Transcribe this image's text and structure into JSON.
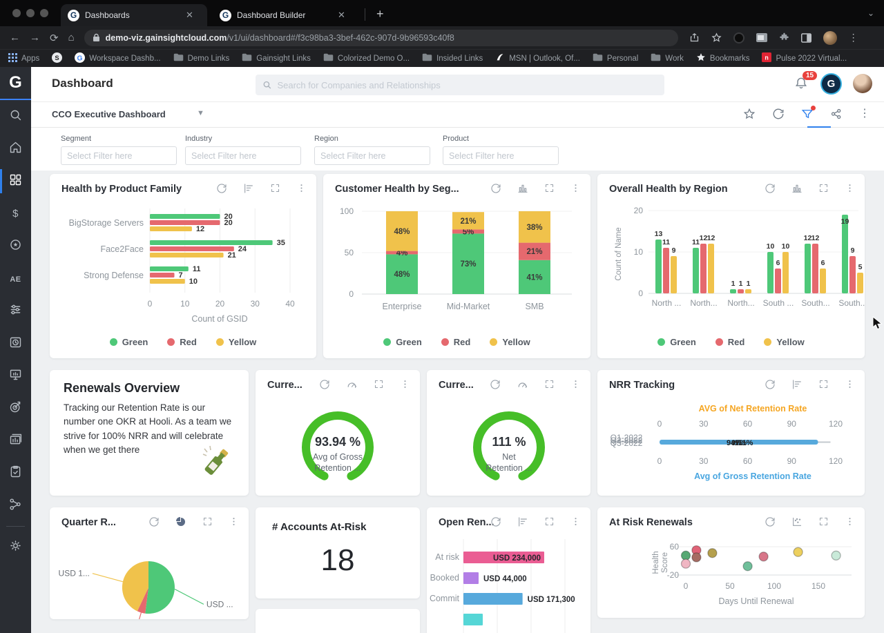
{
  "browser": {
    "tabs": [
      {
        "title": "Dashboards"
      },
      {
        "title": "Dashboard Builder"
      }
    ],
    "url_host": "demo-viz.gainsightcloud.com",
    "url_path": "/v1/ui/dashboard#/f3c98ba3-3bef-462c-907d-9b96593c40f8",
    "bookmarks": [
      {
        "label": "Apps",
        "icon": "apps"
      },
      {
        "label": "",
        "icon": "s-circle"
      },
      {
        "label": "Workspace Dashb...",
        "icon": "google"
      },
      {
        "label": "Demo Links",
        "icon": "folder"
      },
      {
        "label": "Gainsight Links",
        "icon": "folder"
      },
      {
        "label": "Colorized Demo O...",
        "icon": "folder"
      },
      {
        "label": "Insided Links",
        "icon": "folder"
      },
      {
        "label": "MSN | Outlook, Of...",
        "icon": "msn"
      },
      {
        "label": "Personal",
        "icon": "folder"
      },
      {
        "label": "Work",
        "icon": "folder"
      },
      {
        "label": "Bookmarks",
        "icon": "star-b"
      },
      {
        "label": "Pulse 2022 Virtual...",
        "icon": "pulse"
      }
    ]
  },
  "header": {
    "title": "Dashboard",
    "search_placeholder": "Search for Companies and Relationships",
    "notification_count": "15"
  },
  "selector": {
    "label": "CCO Executive Dashboard"
  },
  "filters": [
    {
      "label": "Segment",
      "placeholder": "Select Filter here"
    },
    {
      "label": "Industry",
      "placeholder": "Select Filter here"
    },
    {
      "label": "Region",
      "placeholder": "Select Filter here"
    },
    {
      "label": "Product",
      "placeholder": "Select Filter here"
    }
  ],
  "legend": {
    "labels": [
      "Green",
      "Red",
      "Yellow"
    ]
  },
  "colors": {
    "green": "#4ec878",
    "red": "#e5696e",
    "yellow": "#f0c24b",
    "gauge_green": "#46be28",
    "blue": "#57a9dc",
    "orange": "#f5a623",
    "pink": "#ea5d93",
    "purple": "#b27ee6",
    "cyan": "#55d6d6",
    "accent_blue": "#2f80ed",
    "badge_red": "#e8413d",
    "axis_text": "#8e959c"
  },
  "cards": [
    {
      "id": "hpf",
      "title": "Health by Product Family",
      "icons": [
        "refresh",
        "barsh",
        "expand",
        "kebab"
      ]
    },
    {
      "id": "chs",
      "title": "Customer Health by Seg...",
      "icons": [
        "refresh",
        "columns",
        "expand",
        "kebab"
      ]
    },
    {
      "id": "ohr",
      "title": "Overall Health by Region",
      "icons": [
        "refresh",
        "columns",
        "expand",
        "kebab"
      ]
    },
    {
      "id": "renew",
      "title": "Renewals Overview",
      "body": "Tracking our Retention Rate is our number one OKR at Hooli. As a team we strive for 100% NRR and will celebrate when we get there"
    },
    {
      "id": "g1",
      "title": "Curre...",
      "icons": [
        "refresh",
        "gauge",
        "expand",
        "kebab"
      ]
    },
    {
      "id": "g2",
      "title": "Curre...",
      "icons": [
        "refresh",
        "gauge",
        "expand",
        "kebab"
      ]
    },
    {
      "id": "nrr",
      "title": "NRR Tracking",
      "icons": [
        "refresh",
        "barsh",
        "expand",
        "kebab"
      ]
    },
    {
      "id": "pie",
      "title": "Quarter R...",
      "icons": [
        "refresh",
        "pieic",
        "expand",
        "kebab"
      ]
    },
    {
      "id": "num",
      "title": "# Accounts At-Risk"
    },
    {
      "id": "blank",
      "title": ""
    },
    {
      "id": "open",
      "title": "Open Ren...",
      "icons": [
        "refresh",
        "barsh",
        "expand",
        "kebab"
      ]
    },
    {
      "id": "scatter",
      "title": "At Risk Renewals",
      "icons": [
        "refresh",
        "scatteric",
        "expand",
        "kebab"
      ]
    }
  ],
  "chart_data": [
    {
      "id": "hpf",
      "type": "bar",
      "orientation": "horizontal",
      "grouped": true,
      "title": "Health by Product Family",
      "categories": [
        "BigStorage Servers",
        "Face2Face",
        "Strong Defense"
      ],
      "series": [
        {
          "name": "Green",
          "color_key": "green",
          "values": [
            20,
            35,
            11
          ]
        },
        {
          "name": "Red",
          "color_key": "red",
          "values": [
            20,
            24,
            7
          ]
        },
        {
          "name": "Yellow",
          "color_key": "yellow",
          "values": [
            12,
            21,
            10
          ]
        }
      ],
      "xlabel": "Count of GSID",
      "xticks": [
        0,
        10,
        20,
        30,
        40
      ],
      "xlim": [
        0,
        40
      ],
      "legend_position": "bottom"
    },
    {
      "id": "chs",
      "type": "bar",
      "stacked": true,
      "unit": "%",
      "title": "Customer Health by Seg...",
      "categories": [
        "Enterprise",
        "Mid-Market",
        "SMB"
      ],
      "series": [
        {
          "name": "Green",
          "color_key": "green",
          "values": [
            48,
            73,
            41
          ]
        },
        {
          "name": "Red",
          "color_key": "red",
          "values": [
            4,
            5,
            21
          ]
        },
        {
          "name": "Yellow",
          "color_key": "yellow",
          "values": [
            48,
            21,
            38
          ]
        }
      ],
      "yticks": [
        0,
        50,
        100
      ],
      "ylim": [
        0,
        100
      ],
      "legend_position": "bottom"
    },
    {
      "id": "ohr",
      "type": "bar",
      "grouped": true,
      "title": "Overall Health by Region",
      "categories": [
        "North ...",
        "North...",
        "North...",
        "South ...",
        "South...",
        "South..."
      ],
      "series": [
        {
          "name": "Green",
          "color_key": "green",
          "values": [
            13,
            11,
            1,
            10,
            12,
            19
          ]
        },
        {
          "name": "Red",
          "color_key": "red",
          "values": [
            11,
            12,
            1,
            6,
            12,
            9
          ]
        },
        {
          "name": "Yellow",
          "color_key": "yellow",
          "values": [
            9,
            12,
            1,
            10,
            6,
            5
          ]
        }
      ],
      "ylabel": "Count of Name",
      "yticks": [
        0,
        10,
        20
      ],
      "ylim": [
        0,
        20
      ],
      "legend_position": "bottom"
    },
    {
      "id": "g1",
      "type": "gauge",
      "value_label": "93.94 %",
      "sub_lines": [
        "Avg of Gross",
        "Retention ..."
      ],
      "fill_pct": 100
    },
    {
      "id": "g2",
      "type": "gauge",
      "value_label": "111 %",
      "sub_lines": [
        "Net",
        "Retention ..."
      ],
      "fill_pct": 100
    },
    {
      "id": "nrr",
      "type": "bullet",
      "top_label": "AVG of Net Retention Rate",
      "bottom_label": "Avg of Gross Retention Rate",
      "axis_ticks": [
        0,
        30,
        60,
        90,
        120
      ],
      "xlim": [
        0,
        120
      ],
      "bar_value": 108,
      "row_labels": [
        "Q1-2022",
        "Q2-2022",
        "Q3-2022"
      ],
      "overlap_values": [
        "94%",
        "97%",
        "111%"
      ]
    },
    {
      "id": "pie",
      "type": "pie",
      "title": "Quarter R...",
      "slices": [
        {
          "label": "USD ...",
          "value": 52,
          "color_key": "green"
        },
        {
          "label": "",
          "value": 5,
          "color_key": "red"
        },
        {
          "label": "USD 1...",
          "value": 43,
          "color_key": "yellow"
        }
      ]
    },
    {
      "id": "num",
      "type": "number",
      "title": "# Accounts At-Risk",
      "value": "18"
    },
    {
      "id": "open",
      "type": "bar",
      "orientation": "horizontal",
      "title": "Open Ren...",
      "categories": [
        "At risk",
        "Booked",
        "Commit",
        ""
      ],
      "values": [
        234000,
        44000,
        171300,
        56000
      ],
      "value_labels": [
        "USD 234,000",
        "USD 44,000",
        "USD 171,300",
        ""
      ],
      "bar_colors": [
        "pink",
        "purple",
        "blue",
        "cyan"
      ],
      "xlim": [
        0,
        300000
      ]
    },
    {
      "id": "scatter",
      "type": "scatter",
      "title": "At Risk Renewals",
      "xlabel": "Days Until Renewal",
      "ylabel": "Health Score",
      "xticks": [
        0,
        50,
        100,
        150
      ],
      "yticks": [
        -20,
        60
      ],
      "xlim": [
        0,
        175
      ],
      "ylim": [
        -20,
        60
      ],
      "points": [
        {
          "x": 0,
          "y": 35,
          "color": "#57a873"
        },
        {
          "x": 0,
          "y": 12,
          "color": "#f0b6c3"
        },
        {
          "x": 12,
          "y": 50,
          "color": "#e06377"
        },
        {
          "x": 12,
          "y": 30,
          "color": "#a66b62"
        },
        {
          "x": 30,
          "y": 42,
          "color": "#b5a04d"
        },
        {
          "x": 70,
          "y": 5,
          "color": "#6fbf9a"
        },
        {
          "x": 88,
          "y": 32,
          "color": "#d87689"
        },
        {
          "x": 127,
          "y": 45,
          "color": "#edd05e"
        },
        {
          "x": 170,
          "y": 35,
          "color": "#c9ead9"
        }
      ]
    }
  ]
}
